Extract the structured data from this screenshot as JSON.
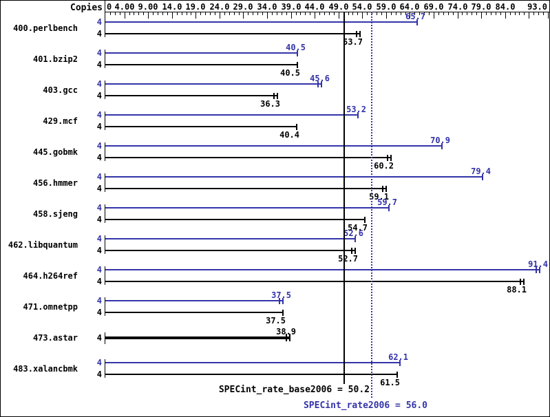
{
  "header": {
    "copies_label": "Copies"
  },
  "colors": {
    "peak": "#3333aa",
    "base": "#000000",
    "background": "#ffffff"
  },
  "reference_lines": {
    "base": {
      "label": "SPECint_rate_base2006 = 50.2",
      "value": 50.2,
      "style": "solid",
      "color": "#000000"
    },
    "peak": {
      "label": "SPECint_rate2006 = 56.0",
      "value": 56.0,
      "style": "dotted",
      "color": "#3333aa"
    }
  },
  "chart_data": {
    "type": "bar",
    "orientation": "horizontal",
    "title": "",
    "xlabel": "",
    "ylabel": "Copies",
    "xlim": [
      0,
      93.3
    ],
    "grid": false,
    "legend_position": "none",
    "axis": {
      "minor_tick_step": 1,
      "major_tick_step": 5,
      "ticks": [
        {
          "value": 0,
          "label": "0"
        },
        {
          "value": 4,
          "label": "4.00"
        },
        {
          "value": 9,
          "label": "9.00"
        },
        {
          "value": 14,
          "label": "14.0"
        },
        {
          "value": 19,
          "label": "19.0"
        },
        {
          "value": 24,
          "label": "24.0"
        },
        {
          "value": 29,
          "label": "29.0"
        },
        {
          "value": 34,
          "label": "34.0"
        },
        {
          "value": 39,
          "label": "39.0"
        },
        {
          "value": 44,
          "label": "44.0"
        },
        {
          "value": 49,
          "label": "49.0"
        },
        {
          "value": 54,
          "label": "54.0"
        },
        {
          "value": 59,
          "label": "59.0"
        },
        {
          "value": 64,
          "label": "64.0"
        },
        {
          "value": 69,
          "label": "69.0"
        },
        {
          "value": 74,
          "label": "74.0"
        },
        {
          "value": 79,
          "label": "79.0"
        },
        {
          "value": 84,
          "label": "84.0"
        },
        {
          "value": 93,
          "label": "93.0"
        }
      ]
    },
    "series_names": [
      "SPECint_rate2006",
      "SPECint_rate_base2006"
    ],
    "benchmarks": [
      {
        "name": "400.perlbench",
        "peak_copies": 4,
        "peak": 65.7,
        "peak_marker": "single",
        "base_copies": 4,
        "base": 53.7,
        "base_marker": "double",
        "single_bar": false
      },
      {
        "name": "401.bzip2",
        "peak_copies": 4,
        "peak": 40.5,
        "peak_marker": "single",
        "base_copies": 4,
        "base": 40.5,
        "base_marker": "single",
        "single_bar": false
      },
      {
        "name": "403.gcc",
        "peak_copies": 4,
        "peak": 45.6,
        "peak_marker": "double",
        "base_copies": 4,
        "base": 36.3,
        "base_marker": "double",
        "single_bar": false
      },
      {
        "name": "429.mcf",
        "peak_copies": 4,
        "peak": 53.2,
        "peak_marker": "single",
        "base_copies": 4,
        "base": 40.4,
        "base_marker": "single",
        "single_bar": false
      },
      {
        "name": "445.gobmk",
        "peak_copies": 4,
        "peak": 70.9,
        "peak_marker": "single",
        "base_copies": 4,
        "base": 60.2,
        "base_marker": "double",
        "single_bar": false
      },
      {
        "name": "456.hmmer",
        "peak_copies": 4,
        "peak": 79.4,
        "peak_marker": "single",
        "base_copies": 4,
        "base": 59.1,
        "base_marker": "double",
        "single_bar": false
      },
      {
        "name": "458.sjeng",
        "peak_copies": 4,
        "peak": 59.7,
        "peak_marker": "single",
        "base_copies": 4,
        "base": 54.7,
        "base_marker": "single",
        "single_bar": false
      },
      {
        "name": "462.libquantum",
        "peak_copies": 4,
        "peak": 52.6,
        "peak_marker": "single",
        "base_copies": 4,
        "base": 52.7,
        "base_marker": "double",
        "single_bar": false
      },
      {
        "name": "464.h264ref",
        "peak_copies": 4,
        "peak": 91.4,
        "peak_marker": "double",
        "base_copies": 4,
        "base": 88.1,
        "base_marker": "double",
        "single_bar": false
      },
      {
        "name": "471.omnetpp",
        "peak_copies": 4,
        "peak": 37.5,
        "peak_marker": "double",
        "base_copies": 4,
        "base": 37.5,
        "base_marker": "single",
        "single_bar": false
      },
      {
        "name": "473.astar",
        "peak_copies": null,
        "peak": null,
        "peak_marker": null,
        "base_copies": 4,
        "base": 38.9,
        "base_marker": "double",
        "single_bar": true
      },
      {
        "name": "483.xalancbmk",
        "peak_copies": 4,
        "peak": 62.1,
        "peak_marker": "single",
        "base_copies": 4,
        "base": 61.5,
        "base_marker": "single",
        "single_bar": false
      }
    ]
  }
}
